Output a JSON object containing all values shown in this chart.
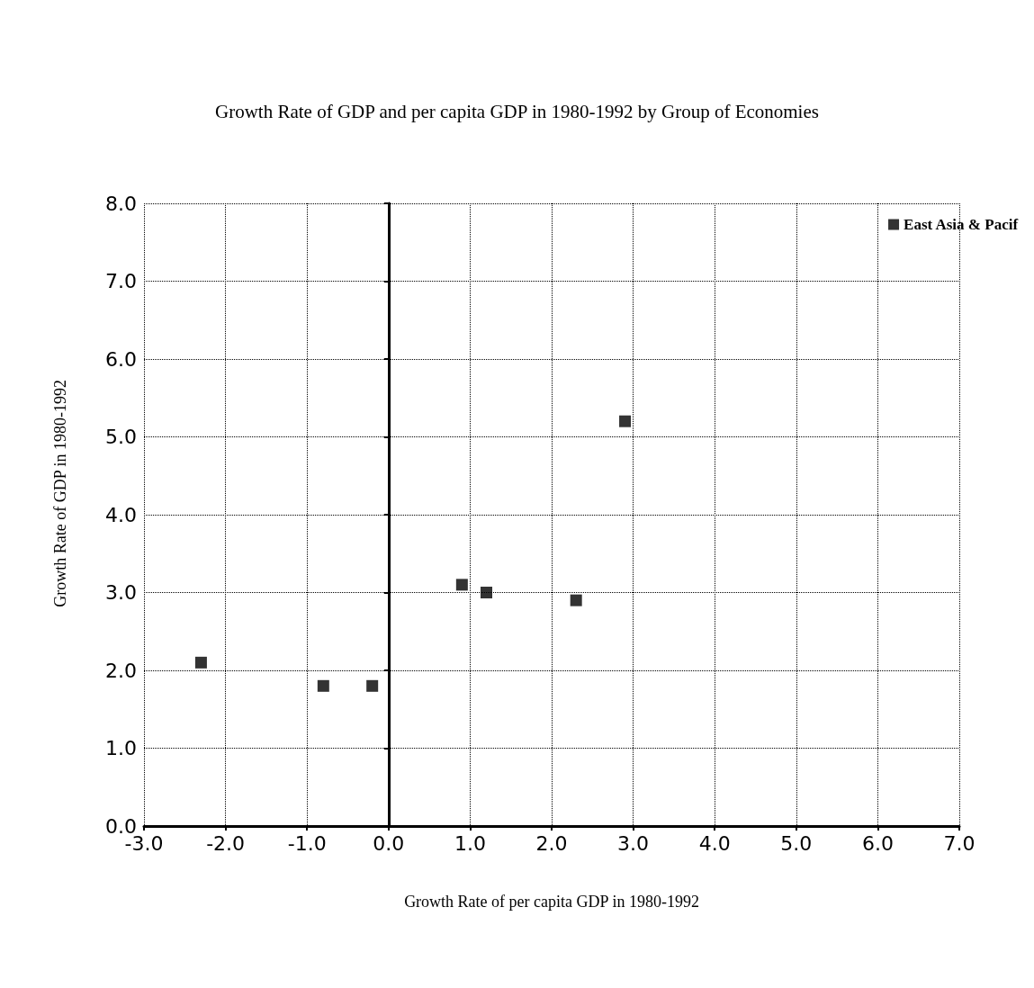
{
  "chart_data": {
    "type": "scatter",
    "title": "Growth Rate of GDP and per capita GDP in 1980-1992 by Group of Economies",
    "xlabel": "Growth Rate of per capita GDP in 1980-1992",
    "ylabel": "Growth Rate of GDP in 1980-1992",
    "series": [
      {
        "name": "East Asia & Pacif",
        "color": "#000000",
        "x": [
          -2.3,
          -0.8,
          -0.2,
          0.9,
          1.2,
          2.3,
          2.9
        ],
        "values": [
          2.1,
          1.8,
          1.8,
          3.1,
          3.0,
          2.9,
          5.2
        ]
      }
    ],
    "xlim": [
      -3,
      7
    ],
    "ylim": [
      0,
      8
    ],
    "xticks": [
      {
        "value": -3,
        "label": "-3.0"
      },
      {
        "value": -2,
        "label": "-2.0"
      },
      {
        "value": -1,
        "label": "-1.0"
      },
      {
        "value": 0,
        "label": "0.0"
      },
      {
        "value": 1,
        "label": "1.0"
      },
      {
        "value": 2,
        "label": "2.0"
      },
      {
        "value": 3,
        "label": "3.0"
      },
      {
        "value": 4,
        "label": "4.0"
      },
      {
        "value": 5,
        "label": "5.0"
      },
      {
        "value": 6,
        "label": "6.0"
      },
      {
        "value": 7,
        "label": "7.0"
      }
    ],
    "yticks": [
      {
        "value": 0,
        "label": "0.0"
      },
      {
        "value": 1,
        "label": "1.0"
      },
      {
        "value": 2,
        "label": "2.0"
      },
      {
        "value": 3,
        "label": "3.0"
      },
      {
        "value": 4,
        "label": "4.0"
      },
      {
        "value": 5,
        "label": "5.0"
      },
      {
        "value": 6,
        "label": "6.0"
      },
      {
        "value": 7,
        "label": "7.0"
      },
      {
        "value": 8,
        "label": "8.0"
      }
    ],
    "grid": true,
    "line_style": "dotted",
    "legend": "top right",
    "marker": "square"
  }
}
